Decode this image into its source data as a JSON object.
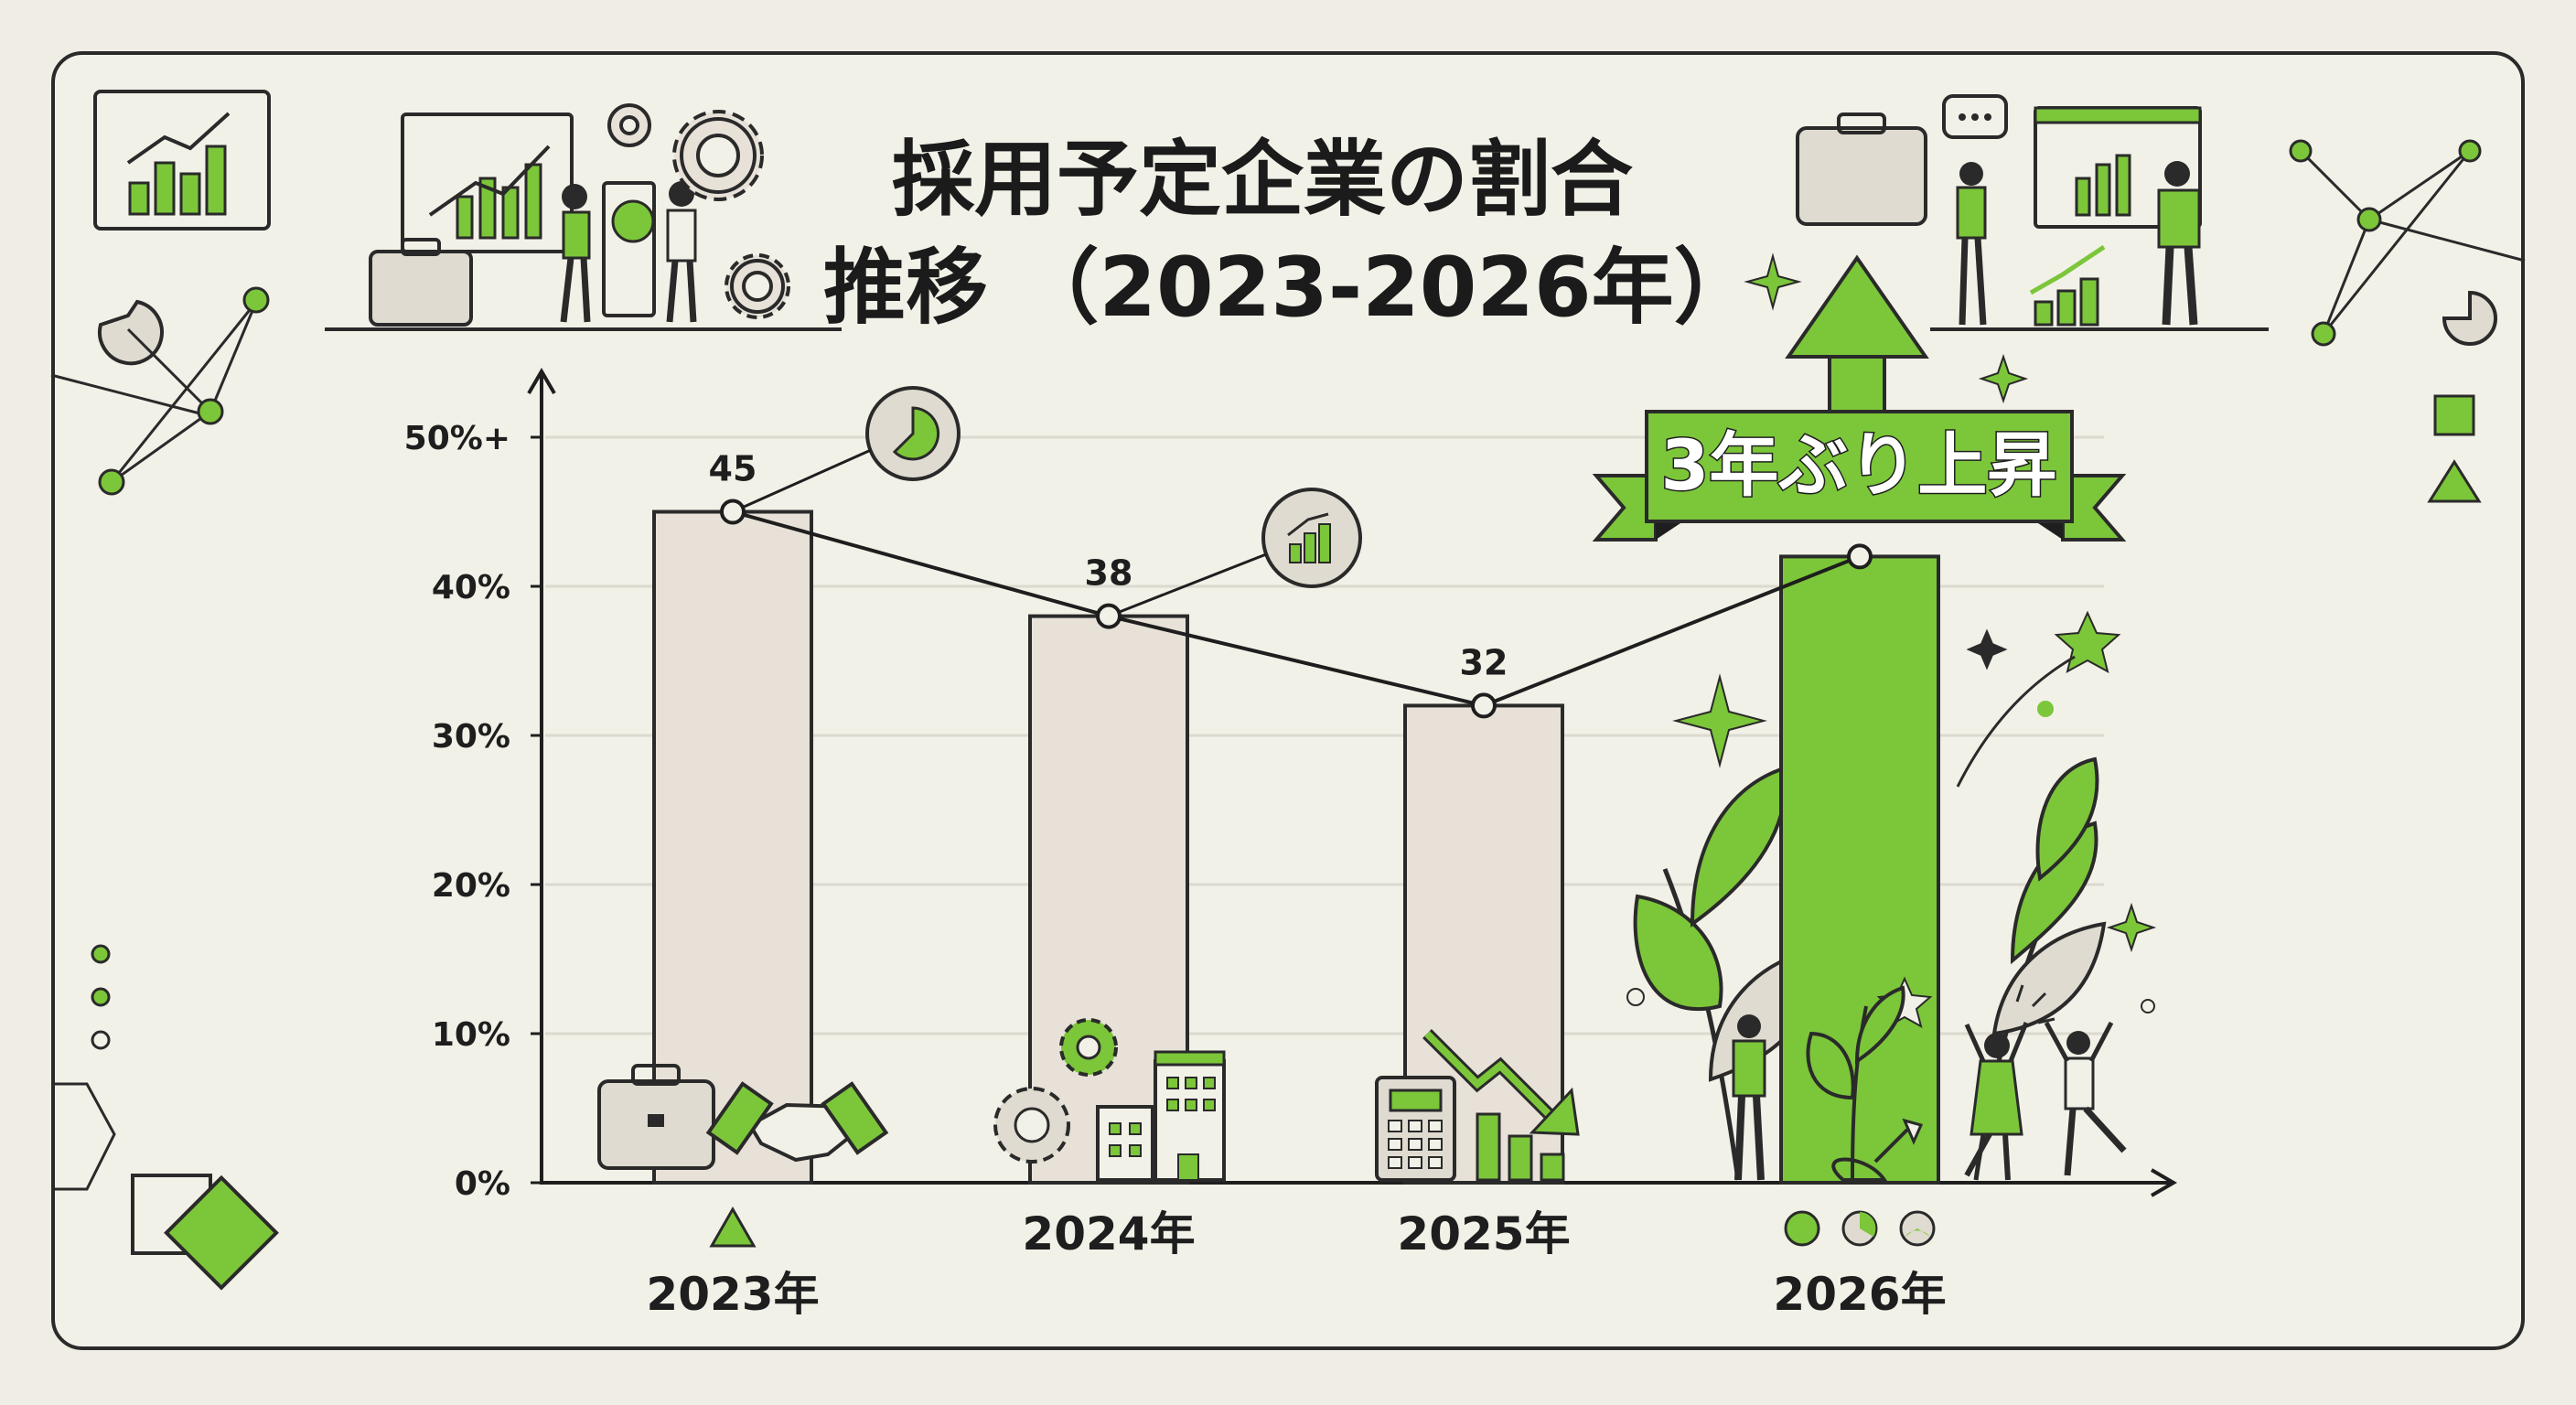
{
  "title": {
    "line1": "採用予定企業の割合",
    "line2": "推移 （2023-2026年）"
  },
  "banner": {
    "text": "3年ぶり上昇"
  },
  "colors": {
    "accent": "#7cc63a",
    "bar_default": "#e7e1d8",
    "line": "#1e1e1e",
    "background": "#f2f1e8"
  },
  "chart_data": {
    "type": "bar",
    "categories": [
      "2023年",
      "2024年",
      "2025年",
      "2026年"
    ],
    "values": [
      45,
      38,
      32,
      42
    ],
    "data_labels": [
      "45",
      "38",
      "32",
      ""
    ],
    "highlight_index": 3,
    "line_overlay": true,
    "ylim": [
      0,
      50
    ],
    "yticks": [
      0,
      10,
      20,
      30,
      40,
      50
    ],
    "ytick_labels": [
      "0%",
      "10%",
      "20%",
      "30%",
      "40%",
      "50%+"
    ],
    "grid": true,
    "legend": "none"
  },
  "icons": [
    "bar-chart-icon",
    "gear-icon",
    "briefcase-icon",
    "handshake-icon",
    "building-icon",
    "calculator-icon",
    "trend-down-icon",
    "pie-chart-icon",
    "sprout-icon",
    "arrow-up-icon",
    "sparkle-icon",
    "network-icon",
    "people-celebrating-icon"
  ]
}
